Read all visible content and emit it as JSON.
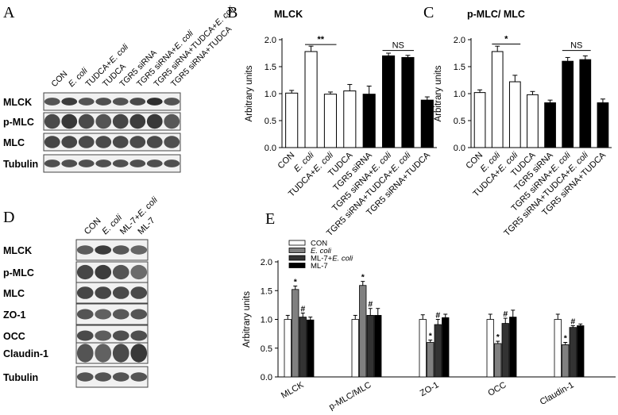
{
  "panel_letters": [
    "A",
    "B",
    "C",
    "D",
    "E"
  ],
  "blotA": {
    "lanes": [
      "CON",
      "E. coli",
      "TUDCA+E. coli",
      "TUDCA",
      "TGR5 siRNA",
      "TGR5 siRNA+E. coli",
      "TGR5 siRNA+TUDCA+E. coli",
      "TGR5 siRNA+TUDCA"
    ],
    "rows": [
      "MLCK",
      "p-MLC",
      "MLC",
      "Tubulin"
    ]
  },
  "blotD": {
    "lanes": [
      "CON",
      "E. coli",
      "ML-7+E. coli",
      "ML-7"
    ],
    "rows": [
      "MLCK",
      "p-MLC",
      "MLC",
      "ZO-1",
      "OCC",
      "Claudin-1",
      "Tubulin"
    ]
  },
  "colors": {
    "white_bar": "#ffffff",
    "black_bar": "#000000",
    "gray_bar": "#808080",
    "dark_bar": "#333333"
  },
  "chart_data": [
    {
      "id": "B",
      "type": "bar",
      "title": "MLCK",
      "ylabel": "Arbitrary units",
      "ylim": [
        0,
        2.0
      ],
      "yticks": [
        "0.0",
        "0.5",
        "1.0",
        "1.5",
        "2.0"
      ],
      "categories": [
        "CON",
        "E. coli",
        "TUDCA+E. coli",
        "TUDCA",
        "TGR5 siRNA",
        "TGR5 siRNA+E. coli",
        "TGR5 siRNA+TUDCA+E. coli",
        "TGR5 siRNA+TUDCA"
      ],
      "values": [
        1.01,
        1.78,
        0.99,
        1.05,
        0.99,
        1.7,
        1.67,
        0.88
      ],
      "errors": [
        0.05,
        0.1,
        0.04,
        0.12,
        0.15,
        0.05,
        0.04,
        0.06
      ],
      "fills": [
        "white",
        "white",
        "white",
        "white",
        "black",
        "black",
        "black",
        "black"
      ],
      "annotations": [
        {
          "text": "**",
          "from": 1,
          "to": 2,
          "y": 1.91
        },
        {
          "text": "NS",
          "from": 5,
          "to": 6,
          "y": 1.8
        }
      ]
    },
    {
      "id": "C",
      "type": "bar",
      "title": "p-MLC/ MLC",
      "ylabel": "Arbitrary units",
      "ylim": [
        0,
        2.0
      ],
      "yticks": [
        "0.0",
        "0.5",
        "1.0",
        "1.5",
        "2.0"
      ],
      "categories": [
        "CON",
        "E. coli",
        "TUDCA+E. coli",
        "TUDCA",
        "TGR5 siRNA",
        "TGR5 siRNA+E. coli",
        "TGR5 siRNA+TUDCA+E. coli",
        "TGR5 siRNA+TUDCA"
      ],
      "values": [
        1.02,
        1.78,
        1.22,
        0.98,
        0.83,
        1.6,
        1.63,
        0.83
      ],
      "errors": [
        0.05,
        0.1,
        0.12,
        0.06,
        0.05,
        0.07,
        0.07,
        0.07
      ],
      "fills": [
        "white",
        "white",
        "white",
        "white",
        "black",
        "black",
        "black",
        "black"
      ],
      "annotations": [
        {
          "text": "*",
          "from": 1,
          "to": 2,
          "y": 1.92
        },
        {
          "text": "NS",
          "from": 5,
          "to": 6,
          "y": 1.8
        }
      ]
    },
    {
      "id": "E",
      "type": "bar",
      "title": "",
      "ylabel": "Arbitrary units",
      "ylim": [
        0,
        2.0
      ],
      "yticks": [
        "0.0",
        "0.5",
        "1.0",
        "1.5",
        "2.0"
      ],
      "categories": [
        "MLCK",
        "p-MLC/MLC",
        "ZO-1",
        "OCC",
        "Claudin-1"
      ],
      "legend_position": "top-left",
      "series": [
        {
          "name": "CON",
          "fill": "white",
          "values": [
            1.0,
            1.0,
            1.0,
            1.0,
            1.0
          ],
          "errors": [
            0.07,
            0.07,
            0.08,
            0.09,
            0.09
          ],
          "marks": [
            "",
            "",
            "",
            "",
            ""
          ]
        },
        {
          "name": "E. coli",
          "fill": "gray",
          "values": [
            1.52,
            1.59,
            0.6,
            0.58,
            0.56
          ],
          "errors": [
            0.06,
            0.07,
            0.04,
            0.04,
            0.04
          ],
          "marks": [
            "*",
            "*",
            "*",
            "*",
            "*"
          ]
        },
        {
          "name": "ML-7+E. coli",
          "fill": "dark",
          "values": [
            1.04,
            1.07,
            0.91,
            0.93,
            0.86
          ],
          "errors": [
            0.07,
            0.12,
            0.09,
            0.09,
            0.03
          ],
          "marks": [
            "#",
            "#",
            "#",
            "#",
            "#"
          ]
        },
        {
          "name": "ML-7",
          "fill": "black",
          "values": [
            0.99,
            1.07,
            1.03,
            1.04,
            0.89
          ],
          "errors": [
            0.05,
            0.12,
            0.06,
            0.12,
            0.03
          ],
          "marks": [
            "",
            "",
            "",
            "",
            ""
          ]
        }
      ]
    }
  ]
}
